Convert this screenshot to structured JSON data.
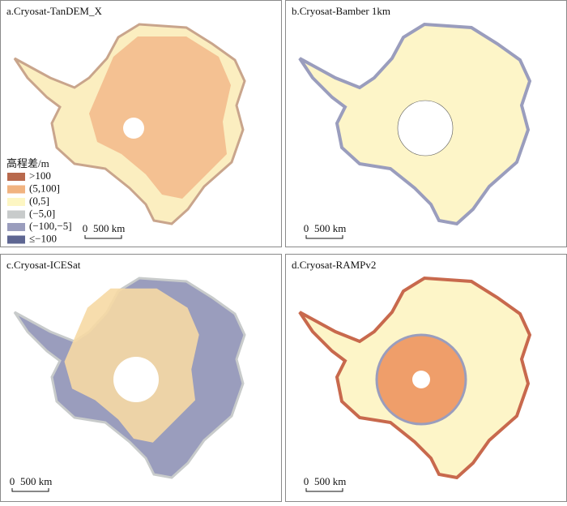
{
  "panels": [
    {
      "title": "a.Cryosat-TanDEM_X",
      "scale_zero": "0",
      "scale_label": "500 km"
    },
    {
      "title": "b.Cryosat-Bamber 1km",
      "scale_zero": "0",
      "scale_label": "500 km"
    },
    {
      "title": "c.Cryosat-ICESat",
      "scale_zero": "0",
      "scale_label": "500 km"
    },
    {
      "title": "d.Cryosat-RAMPv2",
      "scale_zero": "0",
      "scale_label": "500 km"
    }
  ],
  "legend": {
    "title": "高程差/m",
    "items": [
      {
        "label": ">100",
        "color": "#b8694d"
      },
      {
        "label": "(5,100]",
        "color": "#f1b380"
      },
      {
        "label": "(0,5]",
        "color": "#fdf6c3"
      },
      {
        "label": "(−5,0]",
        "color": "#c8cbcb"
      },
      {
        "label": "(−100,−5]",
        "color": "#9a9dbd"
      },
      {
        "label": "≤−100",
        "color": "#5e6692"
      }
    ]
  }
}
